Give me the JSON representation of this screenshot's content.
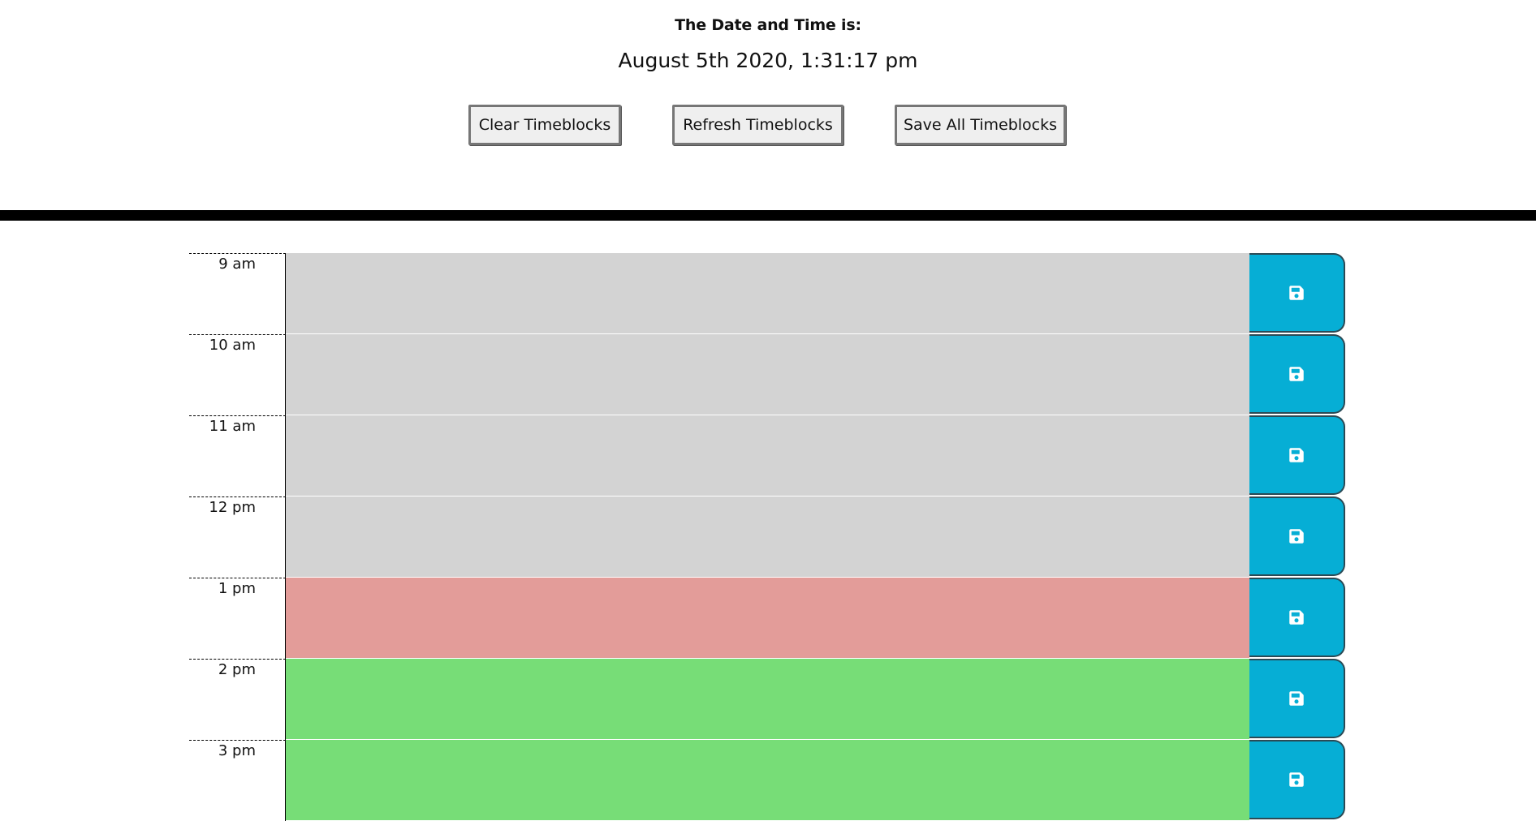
{
  "header": {
    "heading": "The Date and Time is:",
    "datetime": "August 5th 2020, 1:31:17 pm"
  },
  "buttons": {
    "clear": "Clear Timeblocks",
    "refresh": "Refresh Timeblocks",
    "save_all": "Save All Timeblocks"
  },
  "schedule": [
    {
      "hour": "9 am",
      "status": "past",
      "text": ""
    },
    {
      "hour": "10 am",
      "status": "past",
      "text": ""
    },
    {
      "hour": "11 am",
      "status": "past",
      "text": ""
    },
    {
      "hour": "12 pm",
      "status": "past",
      "text": ""
    },
    {
      "hour": "1 pm",
      "status": "present",
      "text": ""
    },
    {
      "hour": "2 pm",
      "status": "future",
      "text": ""
    },
    {
      "hour": "3 pm",
      "status": "future",
      "text": ""
    }
  ],
  "save_icon": "floppy-disk-icon",
  "colors": {
    "past": "#d3d3d3",
    "present": "#e39c99",
    "future": "#77dd77",
    "save_button": "#06aed5"
  }
}
